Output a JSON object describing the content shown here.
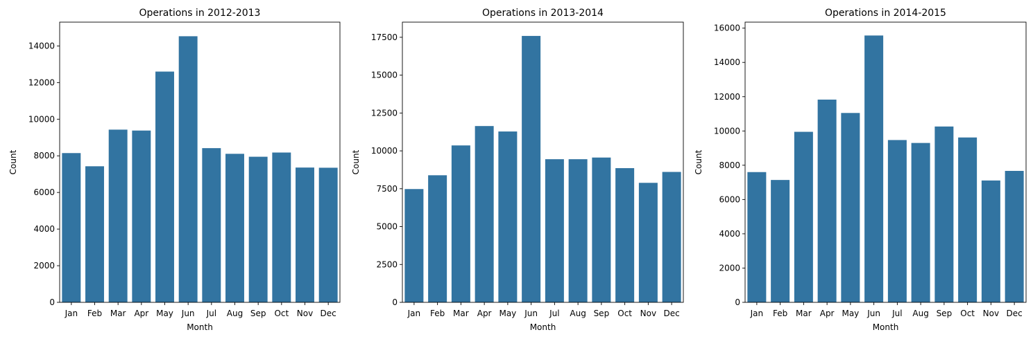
{
  "chart_data": [
    {
      "type": "bar",
      "title": "Operations in 2012-2013",
      "xlabel": "Month",
      "ylabel": "Count",
      "categories": [
        "Jan",
        "Feb",
        "Mar",
        "Apr",
        "May",
        "Jun",
        "Jul",
        "Aug",
        "Sep",
        "Oct",
        "Nov",
        "Dec"
      ],
      "values": [
        8150,
        7430,
        9430,
        9380,
        12600,
        14530,
        8420,
        8110,
        7950,
        8180,
        7360,
        7350
      ],
      "ylim": [
        0,
        15300
      ],
      "yticks": [
        0,
        2000,
        4000,
        6000,
        8000,
        10000,
        12000,
        14000
      ],
      "color": "#3274a1",
      "grid": false
    },
    {
      "type": "bar",
      "title": "Operations in 2013-2014",
      "xlabel": "Month",
      "ylabel": "Count",
      "categories": [
        "Jan",
        "Feb",
        "Mar",
        "Apr",
        "May",
        "Jun",
        "Jul",
        "Aug",
        "Sep",
        "Oct",
        "Nov",
        "Dec"
      ],
      "values": [
        7480,
        8390,
        10360,
        11640,
        11280,
        17590,
        9450,
        9450,
        9560,
        8860,
        7890,
        8610
      ],
      "ylim": [
        0,
        18500
      ],
      "yticks": [
        0,
        2500,
        5000,
        7500,
        10000,
        12500,
        15000,
        17500
      ],
      "color": "#3274a1",
      "grid": false
    },
    {
      "type": "bar",
      "title": "Operations in 2014-2015",
      "xlabel": "Month",
      "ylabel": "Count",
      "categories": [
        "Jan",
        "Feb",
        "Mar",
        "Apr",
        "May",
        "Jun",
        "Jul",
        "Aug",
        "Sep",
        "Oct",
        "Nov",
        "Dec"
      ],
      "values": [
        7600,
        7140,
        9950,
        11830,
        11050,
        15570,
        9470,
        9300,
        10260,
        9620,
        7110,
        7670
      ],
      "ylim": [
        0,
        16350
      ],
      "yticks": [
        0,
        2000,
        4000,
        6000,
        8000,
        10000,
        12000,
        14000,
        16000
      ],
      "color": "#3274a1",
      "grid": false
    }
  ]
}
